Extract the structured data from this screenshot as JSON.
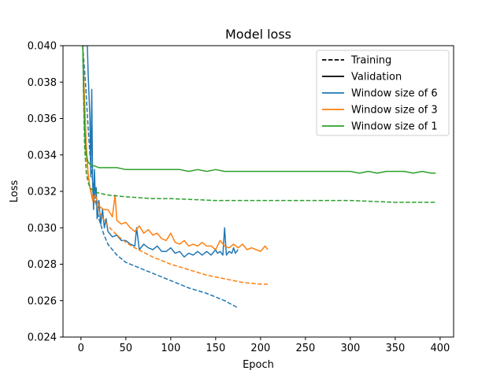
{
  "chart_data": {
    "type": "line",
    "title": "Model loss",
    "xlabel": "Epoch",
    "ylabel": "Loss",
    "xlim": [
      -20,
      415
    ],
    "ylim": [
      0.024,
      0.04
    ],
    "xticks": [
      0,
      50,
      100,
      150,
      200,
      250,
      300,
      350,
      400
    ],
    "yticks": [
      0.024,
      0.026,
      0.028,
      0.03,
      0.032,
      0.034,
      0.036,
      0.038,
      0.04
    ],
    "ytick_labels": [
      "0.024",
      "0.026",
      "0.028",
      "0.030",
      "0.032",
      "0.034",
      "0.036",
      "0.038",
      "0.040"
    ],
    "grid": false,
    "legend_position": "top-right",
    "legend": [
      {
        "label": "Training",
        "color": "#000000",
        "style": "dashed"
      },
      {
        "label": "Validation",
        "color": "#000000",
        "style": "solid"
      },
      {
        "label": "Window size of 6",
        "color": "#1f77b4",
        "style": "solid"
      },
      {
        "label": "Window size of 3",
        "color": "#ff7f0e",
        "style": "solid"
      },
      {
        "label": "Window size of 1",
        "color": "#2ca02c",
        "style": "solid"
      }
    ],
    "series": [
      {
        "name": "Window size of 6 - Training",
        "color": "#1f77b4",
        "style": "dashed",
        "x": [
          2,
          5,
          8,
          10,
          12,
          15,
          20,
          25,
          30,
          40,
          50,
          60,
          80,
          100,
          120,
          140,
          160,
          175
        ],
        "y": [
          0.04,
          0.038,
          0.0355,
          0.034,
          0.033,
          0.0318,
          0.0305,
          0.0297,
          0.0291,
          0.0285,
          0.0281,
          0.0279,
          0.0275,
          0.0271,
          0.0267,
          0.0264,
          0.026,
          0.0256
        ]
      },
      {
        "name": "Window size of 6 - Validation",
        "color": "#1f77b4",
        "style": "solid",
        "x": [
          3,
          5,
          7,
          8,
          10,
          11,
          12,
          13,
          14,
          15,
          16,
          17,
          18,
          20,
          22,
          24,
          26,
          28,
          30,
          35,
          40,
          45,
          50,
          55,
          60,
          62,
          65,
          70,
          75,
          80,
          85,
          90,
          95,
          100,
          105,
          110,
          115,
          120,
          125,
          130,
          135,
          140,
          145,
          150,
          152,
          155,
          158,
          160,
          162,
          165,
          168,
          170,
          172,
          175
        ],
        "y": [
          0.04,
          0.04,
          0.0402,
          0.0385,
          0.036,
          0.0328,
          0.0376,
          0.0325,
          0.031,
          0.0332,
          0.0318,
          0.0322,
          0.0305,
          0.0315,
          0.0302,
          0.031,
          0.03,
          0.0305,
          0.0298,
          0.0295,
          0.0296,
          0.0293,
          0.0293,
          0.0291,
          0.029,
          0.03,
          0.0288,
          0.0291,
          0.0289,
          0.0288,
          0.029,
          0.0287,
          0.0287,
          0.0289,
          0.0286,
          0.0287,
          0.0284,
          0.0286,
          0.0285,
          0.0287,
          0.0285,
          0.0287,
          0.0285,
          0.0288,
          0.0286,
          0.0287,
          0.0285,
          0.03,
          0.0285,
          0.0287,
          0.0286,
          0.0289,
          0.0286,
          0.0288
        ]
      },
      {
        "name": "Window size of 3 - Training",
        "color": "#ff7f0e",
        "style": "dashed",
        "x": [
          2,
          4,
          6,
          8,
          10,
          15,
          20,
          25,
          30,
          40,
          50,
          60,
          80,
          100,
          120,
          140,
          160,
          180,
          200,
          208
        ],
        "y": [
          0.04,
          0.036,
          0.034,
          0.0328,
          0.0322,
          0.0315,
          0.0309,
          0.0305,
          0.0301,
          0.0296,
          0.0292,
          0.0289,
          0.0284,
          0.028,
          0.0277,
          0.0274,
          0.0272,
          0.027,
          0.0269,
          0.0269
        ]
      },
      {
        "name": "Window size of 3 - Validation",
        "color": "#ff7f0e",
        "style": "solid",
        "x": [
          2,
          4,
          6,
          8,
          10,
          13,
          16,
          20,
          25,
          30,
          35,
          38,
          40,
          45,
          50,
          55,
          60,
          65,
          70,
          75,
          80,
          85,
          90,
          95,
          100,
          105,
          110,
          115,
          120,
          125,
          130,
          135,
          140,
          145,
          150,
          155,
          160,
          165,
          170,
          175,
          180,
          185,
          190,
          195,
          200,
          205,
          208
        ],
        "y": [
          0.04,
          0.037,
          0.0345,
          0.033,
          0.0322,
          0.0315,
          0.0318,
          0.0312,
          0.031,
          0.031,
          0.0306,
          0.0318,
          0.0304,
          0.0302,
          0.0303,
          0.03,
          0.0298,
          0.0301,
          0.0297,
          0.0299,
          0.0296,
          0.0297,
          0.0294,
          0.0293,
          0.0297,
          0.0292,
          0.0291,
          0.0293,
          0.029,
          0.0291,
          0.029,
          0.0292,
          0.029,
          0.029,
          0.0288,
          0.0293,
          0.029,
          0.0289,
          0.0291,
          0.0289,
          0.0291,
          0.0288,
          0.0289,
          0.0288,
          0.0287,
          0.029,
          0.0288
        ]
      },
      {
        "name": "Window size of 1 - Training",
        "color": "#2ca02c",
        "style": "dashed",
        "x": [
          2,
          3,
          4,
          6,
          8,
          10,
          15,
          20,
          30,
          50,
          80,
          100,
          150,
          200,
          250,
          300,
          350,
          395
        ],
        "y": [
          0.04,
          0.037,
          0.0345,
          0.033,
          0.0325,
          0.0322,
          0.032,
          0.0319,
          0.0318,
          0.0317,
          0.0316,
          0.0316,
          0.0315,
          0.0315,
          0.0315,
          0.0315,
          0.0314,
          0.0314
        ]
      },
      {
        "name": "Window size of 1 - Validation",
        "color": "#2ca02c",
        "style": "solid",
        "x": [
          2,
          3,
          4,
          5,
          6,
          8,
          10,
          12,
          15,
          20,
          25,
          30,
          40,
          50,
          60,
          70,
          80,
          90,
          100,
          110,
          120,
          130,
          140,
          150,
          160,
          170,
          180,
          190,
          200,
          210,
          220,
          230,
          240,
          250,
          260,
          270,
          280,
          290,
          300,
          310,
          320,
          330,
          340,
          350,
          360,
          370,
          380,
          390,
          395
        ],
        "y": [
          0.04,
          0.0375,
          0.0355,
          0.0345,
          0.034,
          0.0336,
          0.0335,
          0.0334,
          0.0334,
          0.0333,
          0.0333,
          0.0333,
          0.0333,
          0.0332,
          0.0332,
          0.0332,
          0.0332,
          0.0332,
          0.0332,
          0.0332,
          0.0331,
          0.0332,
          0.0331,
          0.0332,
          0.0331,
          0.0331,
          0.0331,
          0.0331,
          0.0331,
          0.0331,
          0.0331,
          0.0331,
          0.0331,
          0.0331,
          0.0331,
          0.0331,
          0.0331,
          0.0331,
          0.0331,
          0.033,
          0.0331,
          0.033,
          0.0331,
          0.0331,
          0.0331,
          0.033,
          0.0331,
          0.033,
          0.033
        ]
      }
    ]
  }
}
